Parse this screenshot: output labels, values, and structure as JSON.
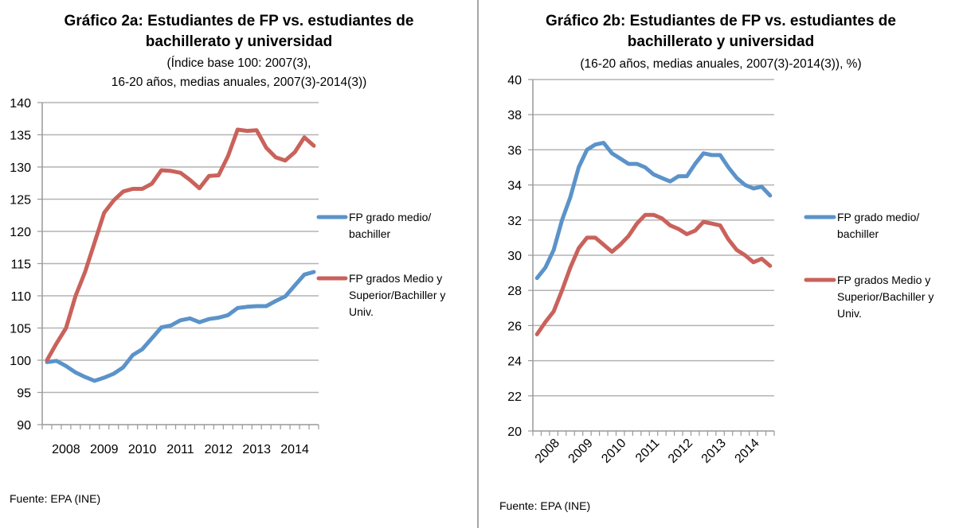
{
  "chart_data": [
    {
      "type": "line",
      "title": "Gráfico 2a: Estudiantes de FP vs. estudiantes de bachillerato y universidad",
      "title_lines": [
        "Gráfico 2a: Estudiantes de FP vs. estudiantes de",
        "bachillerato y universidad"
      ],
      "subtitle_lines": [
        "(Índice base 100: 2007(3),",
        "16-20 años, medias anuales, 2007(3)-2014(3))"
      ],
      "ylim": [
        90,
        140
      ],
      "yticks": [
        "90",
        "95",
        "100",
        "105",
        "110",
        "115",
        "120",
        "125",
        "130",
        "135",
        "140"
      ],
      "xtick_labels": [
        "2008",
        "2009",
        "2010",
        "2011",
        "2012",
        "2013",
        "2014"
      ],
      "x_range": "2007(3)-2014(3), quarterly",
      "grid": true,
      "legend_position": "right",
      "series": [
        {
          "name": "FP grado medio/ bachiller",
          "legend_lines": [
            "FP grado medio/",
            "bachiller"
          ],
          "color": "#5b93c9",
          "values": [
            99.7,
            99.9,
            99.1,
            98.1,
            97.4,
            96.8,
            97.3,
            97.9,
            98.9,
            100.8,
            101.7,
            103.4,
            105.1,
            105.4,
            106.2,
            106.5,
            105.9,
            106.4,
            106.6,
            107.0,
            108.1,
            108.3,
            108.4,
            108.4,
            109.2,
            109.9,
            111.6,
            113.3,
            113.7
          ]
        },
        {
          "name": "FP grados Medio y Superior/Bachiller y Univ.",
          "legend_lines": [
            "FP grados Medio y",
            "Superior/Bachiller y",
            "Univ."
          ],
          "color": "#c9625b",
          "values": [
            100.0,
            102.6,
            105.0,
            110.0,
            113.7,
            118.3,
            122.9,
            124.8,
            126.2,
            126.6,
            126.6,
            127.4,
            129.5,
            129.4,
            129.1,
            128.0,
            126.7,
            128.6,
            128.7,
            131.7,
            135.8,
            135.6,
            135.7,
            133.0,
            131.5,
            131.0,
            132.3,
            134.6,
            133.3
          ]
        }
      ],
      "source": "Fuente: EPA (INE)"
    },
    {
      "type": "line",
      "title": "Gráfico 2b: Estudiantes de FP vs. estudiantes de bachillerato y universidad",
      "title_lines": [
        "Gráfico 2b: Estudiantes de FP vs. estudiantes de",
        "bachillerato y universidad"
      ],
      "subtitle_lines": [
        "(16-20 años, medias anuales, 2007(3)-2014(3)), %)"
      ],
      "ylim": [
        20,
        40
      ],
      "yticks": [
        "20",
        "22",
        "24",
        "26",
        "28",
        "30",
        "32",
        "34",
        "36",
        "38",
        "40"
      ],
      "xtick_labels": [
        "2008",
        "2009",
        "2010",
        "2011",
        "2012",
        "2013",
        "2014"
      ],
      "x_range": "2007(3)-2014(3), quarterly",
      "grid": true,
      "legend_position": "right",
      "series": [
        {
          "name": "FP grado medio/ bachiller",
          "legend_lines": [
            "FP grado medio/",
            "bachiller"
          ],
          "color": "#5b93c9",
          "values": [
            28.7,
            29.3,
            30.3,
            32.0,
            33.3,
            35.0,
            36.0,
            36.3,
            36.4,
            35.8,
            35.5,
            35.2,
            35.2,
            35.0,
            34.6,
            34.4,
            34.2,
            34.5,
            34.5,
            35.2,
            35.8,
            35.7,
            35.7,
            35.0,
            34.4,
            34.0,
            33.8,
            33.9,
            33.4
          ]
        },
        {
          "name": "FP grados Medio y Superior/Bachiller y Univ.",
          "legend_lines": [
            "FP grados Medio y",
            "Superior/Bachiller y",
            "Univ."
          ],
          "color": "#c9625b",
          "values": [
            25.5,
            26.2,
            26.8,
            28.0,
            29.3,
            30.4,
            31.0,
            31.0,
            30.6,
            30.2,
            30.6,
            31.1,
            31.8,
            32.3,
            32.3,
            32.1,
            31.7,
            31.5,
            31.2,
            31.4,
            31.9,
            31.8,
            31.7,
            30.9,
            30.3,
            30.0,
            29.6,
            29.8,
            29.4
          ]
        }
      ],
      "source": "Fuente: EPA (INE)"
    }
  ]
}
